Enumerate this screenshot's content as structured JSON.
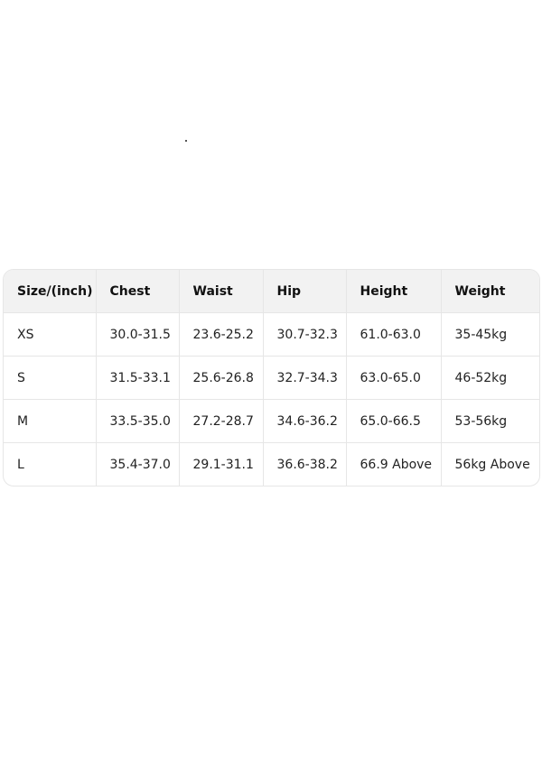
{
  "table": {
    "headers": [
      "Size/(inch)",
      "Chest",
      "Waist",
      "Hip",
      "Height",
      "Weight"
    ],
    "rows": [
      [
        "XS",
        "30.0-31.5",
        "23.6-25.2",
        "30.7-32.3",
        "61.0-63.0",
        "35-45kg"
      ],
      [
        "S",
        "31.5-33.1",
        "25.6-26.8",
        "32.7-34.3",
        "63.0-65.0",
        "46-52kg"
      ],
      [
        "M",
        "33.5-35.0",
        "27.2-28.7",
        "34.6-36.2",
        "65.0-66.5",
        "53-56kg"
      ],
      [
        "L",
        "35.4-37.0",
        "29.1-31.1",
        "36.6-38.2",
        "66.9 Above",
        "56kg Above"
      ]
    ]
  }
}
